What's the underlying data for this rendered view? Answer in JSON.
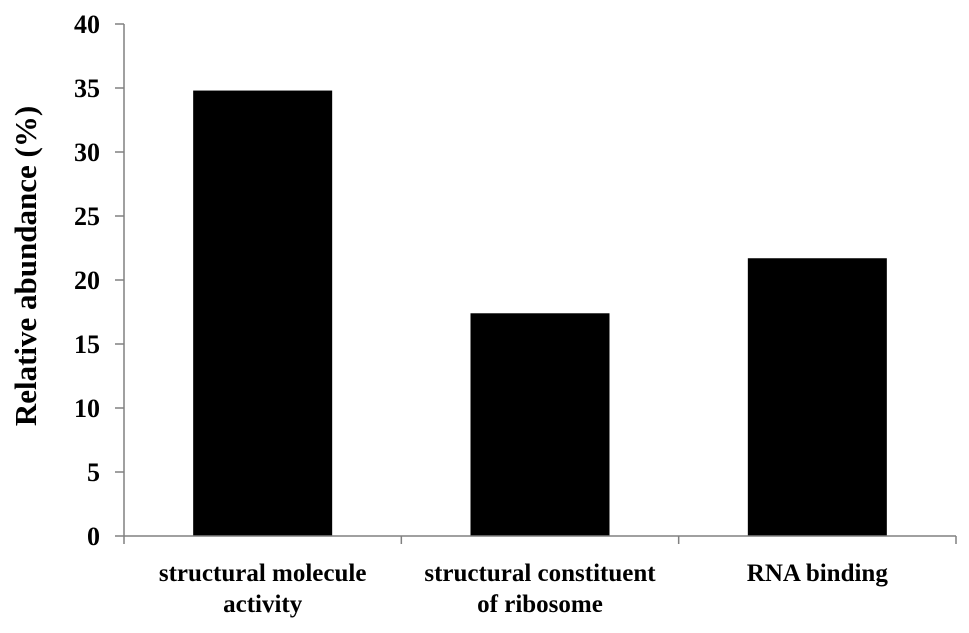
{
  "chart_data": {
    "type": "bar",
    "title": "",
    "xlabel": "",
    "ylabel": "Relative abundance (%)",
    "ylim": [
      0,
      40
    ],
    "yticks": [
      0,
      5,
      10,
      15,
      20,
      25,
      30,
      35,
      40
    ],
    "grid": false,
    "categories": [
      [
        "structural molecule",
        "activity"
      ],
      [
        "structural constituent",
        "of ribosome"
      ],
      [
        "RNA binding"
      ]
    ],
    "values": [
      34.8,
      17.4,
      21.7
    ],
    "bar_color": "#000000"
  }
}
